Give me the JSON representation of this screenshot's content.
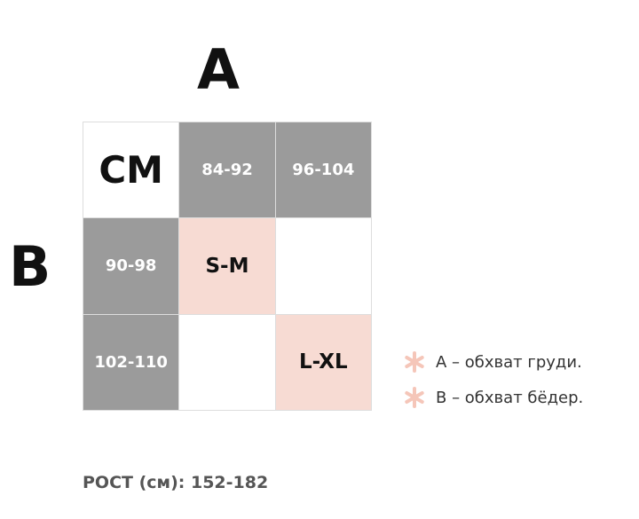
{
  "heading_a": "A",
  "heading_b": "B",
  "table": {
    "rows": [
      [
        "СМ",
        "84-92",
        "96-104"
      ],
      [
        "90-98",
        "S-M",
        null
      ],
      [
        "102-110",
        null,
        "L-XL"
      ]
    ]
  },
  "legend": [
    "А – обхват груди.",
    "В – обхват бёдер."
  ],
  "footer": "РОСТ (см): 152-182"
}
